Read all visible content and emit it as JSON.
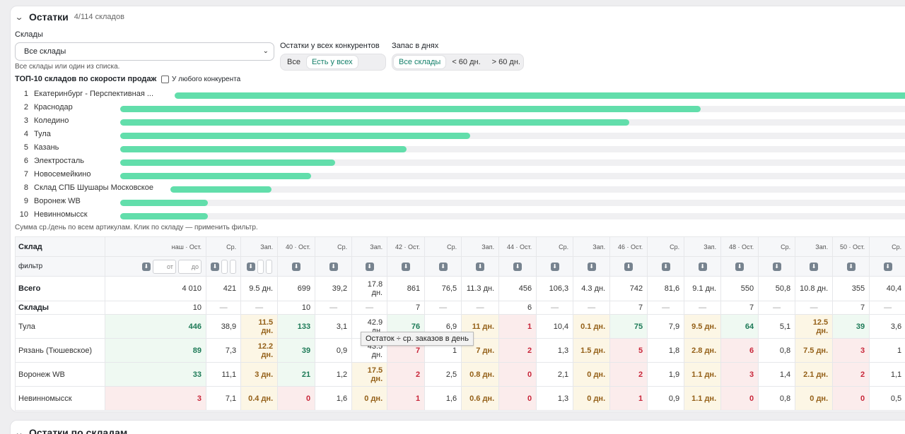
{
  "section": {
    "title": "Остатки",
    "count": "4/114 складов"
  },
  "warehouses": {
    "label": "Склады",
    "selected": "Все склады",
    "hint": "Все склады или один из списка."
  },
  "competitors": {
    "label": "Остатки у всех конкурентов",
    "options": [
      "Все",
      "Есть у всех"
    ],
    "active": 1
  },
  "days": {
    "label": "Запас в днях",
    "options": [
      "Все склады",
      "< 60 дн.",
      "> 60 дн."
    ],
    "active": 0
  },
  "top": {
    "title": "ТОП-10 складов по скорости продаж",
    "checkbox_label": "У любого конкурента",
    "items": [
      {
        "rank": "1",
        "name": "Екатеринбург - Перспективная ...",
        "value": 1.0
      },
      {
        "rank": "2",
        "name": "Краснодар",
        "value": 0.73
      },
      {
        "rank": "3",
        "name": "Коледино",
        "value": 0.64
      },
      {
        "rank": "4",
        "name": "Тула",
        "value": 0.44
      },
      {
        "rank": "5",
        "name": "Казань",
        "value": 0.36
      },
      {
        "rank": "6",
        "name": "Электросталь",
        "value": 0.27
      },
      {
        "rank": "7",
        "name": "Новосемейкино",
        "value": 0.24
      },
      {
        "rank": "8",
        "name": "Склад СПБ Шушары Московское",
        "value": 0.19
      },
      {
        "rank": "9",
        "name": "Воронеж WB",
        "value": 0.11
      },
      {
        "rank": "10",
        "name": "Невинномысск",
        "value": 0.11
      }
    ],
    "footnote": "Сумма ср./день по всем артикулам. Клик по складу — применить фильтр."
  },
  "table": {
    "col_warehouse": "Склад",
    "filter_label": "фильтр",
    "from_placeholder": "от",
    "to_placeholder": "до",
    "first_group_header": "наш · Ост.",
    "headers": [
      "Ср.",
      "Зап.",
      "40 · Ост.",
      "Ср.",
      "Зап.",
      "42 · Ост.",
      "Ср.",
      "Зап.",
      "44 · Ост.",
      "Ср.",
      "Зап.",
      "46 · Ост.",
      "Ср.",
      "Зап.",
      "48 · Ост.",
      "Ср.",
      "Зап.",
      "50 · Ост.",
      "Ср."
    ],
    "total": {
      "label": "Всего",
      "values": [
        "4 010",
        "421",
        "9.5 дн.",
        "699",
        "39,2",
        "17.8 дн.",
        "861",
        "76,5",
        "11.3 дн.",
        "456",
        "106,3",
        "4.3 дн.",
        "742",
        "81,6",
        "9.1 дн.",
        "550",
        "50,8",
        "10.8 дн.",
        "355",
        "40,4"
      ]
    },
    "warehouses_row": {
      "label": "Склады",
      "values": [
        "10",
        "—",
        "—",
        "10",
        "—",
        "—",
        "7",
        "—",
        "—",
        "6",
        "—",
        "—",
        "7",
        "—",
        "—",
        "7",
        "—",
        "—",
        "7",
        "—"
      ]
    },
    "rows": [
      {
        "name": "Тула",
        "values": [
          "446",
          "38,9",
          "11.5 дн.",
          "133",
          "3,1",
          "42.9 дн.",
          "76",
          "6,9",
          "11 дн.",
          "1",
          "10,4",
          "0.1 дн.",
          "75",
          "7,9",
          "9.5 дн.",
          "64",
          "5,1",
          "12.5 дн.",
          "39",
          "3,6"
        ]
      },
      {
        "name": "Рязань (Тюшевское)",
        "values": [
          "89",
          "7,3",
          "12.2 дн.",
          "39",
          "0,9",
          "43.5 дн.",
          "7",
          "1",
          "7 дн.",
          "2",
          "1,3",
          "1.5 дн.",
          "5",
          "1,8",
          "2.8 дн.",
          "6",
          "0,8",
          "7.5 дн.",
          "3",
          "1"
        ]
      },
      {
        "name": "Воронеж WB",
        "values": [
          "33",
          "11,1",
          "3 дн.",
          "21",
          "1,2",
          "17.5 дн.",
          "2",
          "2,5",
          "0.8 дн.",
          "0",
          "2,1",
          "0 дн.",
          "2",
          "1,9",
          "1.1 дн.",
          "3",
          "1,4",
          "2.1 дн.",
          "2",
          "1,1"
        ]
      },
      {
        "name": "Невинномысск",
        "values": [
          "3",
          "7,1",
          "0.4 дн.",
          "0",
          "1,6",
          "0 дн.",
          "1",
          "1,6",
          "0.6 дн.",
          "0",
          "1,3",
          "0 дн.",
          "1",
          "0,9",
          "1.1 дн.",
          "0",
          "0,8",
          "0 дн.",
          "0",
          "0,5"
        ]
      }
    ]
  },
  "tooltip": "Остаток ÷ ср. заказов в день",
  "next_section": "Остатки по складам"
}
